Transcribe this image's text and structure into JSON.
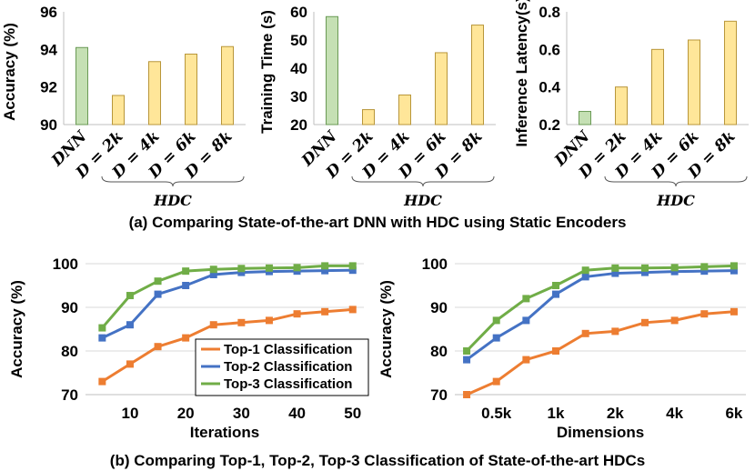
{
  "captions": {
    "a": "(a) Comparing State-of-the-art DNN with HDC using Static Encoders",
    "b": "(b) Comparing Top-1, Top-2, Top-3 Classification of State-of-the-art HDCs"
  },
  "colors": {
    "dnn_fill": "#c5e0b4",
    "dnn_stroke": "#6a9a55",
    "hdc_fill": "#ffe699",
    "hdc_stroke": "#b8963a",
    "top1": "#ed7d31",
    "top2": "#4472c4",
    "top3": "#70ad47",
    "grid": "#d9d9d9"
  },
  "chart_data": [
    {
      "id": "accuracy",
      "type": "bar",
      "categories": [
        "DNN",
        "D = 2k",
        "D = 4k",
        "D = 6k",
        "D = 8k"
      ],
      "values": [
        94.1,
        91.55,
        93.35,
        93.75,
        94.15
      ],
      "ylabel": "Accuracy (%)",
      "ylim": [
        90,
        96
      ],
      "yticks": [
        90,
        92,
        94,
        96
      ],
      "group_label": "HDC"
    },
    {
      "id": "training",
      "type": "bar",
      "categories": [
        "DNN",
        "D = 2k",
        "D = 4k",
        "D = 6k",
        "D = 8k"
      ],
      "values": [
        58.3,
        25.3,
        30.5,
        45.5,
        55.3
      ],
      "ylabel": "Training Time (s)",
      "ylim": [
        20,
        60
      ],
      "yticks": [
        20,
        30,
        40,
        50,
        60
      ],
      "group_label": "HDC"
    },
    {
      "id": "latency",
      "type": "bar",
      "categories": [
        "DNN",
        "D = 2k",
        "D = 4k",
        "D = 6k",
        "D = 8k"
      ],
      "values": [
        0.27,
        0.4,
        0.6,
        0.65,
        0.75
      ],
      "ylabel": "Inference Latency(s)",
      "ylim": [
        0.2,
        0.8
      ],
      "yticks": [
        "0.2",
        "0.4",
        "0.6",
        "0.8"
      ],
      "group_label": "HDC"
    },
    {
      "id": "iterations",
      "type": "line",
      "x": [
        5,
        10,
        15,
        20,
        25,
        30,
        35,
        40,
        45,
        50
      ],
      "xticks": [
        10,
        20,
        30,
        40,
        50
      ],
      "xlim": [
        2,
        52
      ],
      "xlabel": "Iterations",
      "ylabel": "Accuracy (%)",
      "ylim": [
        70,
        100
      ],
      "yticks": [
        70,
        80,
        90,
        100
      ],
      "series": [
        {
          "name": "Top-1 Classification",
          "values": [
            73,
            77,
            81,
            83,
            86,
            86.5,
            87,
            88.5,
            89,
            89.5
          ]
        },
        {
          "name": "Top-2 Classification",
          "values": [
            83,
            86,
            93,
            95,
            97.5,
            98,
            98.2,
            98.3,
            98.4,
            98.5
          ]
        },
        {
          "name": "Top-3 Classification",
          "values": [
            85.3,
            92.7,
            96,
            98.3,
            98.7,
            98.9,
            99,
            99.1,
            99.5,
            99.5
          ]
        }
      ],
      "legend": "bottom-right"
    },
    {
      "id": "dimensions",
      "type": "line",
      "x": [
        0,
        1,
        2,
        3,
        4,
        5,
        6,
        7,
        8,
        9
      ],
      "xticks": [
        {
          "pos": 1,
          "label": "0.5k"
        },
        {
          "pos": 3,
          "label": "1k"
        },
        {
          "pos": 5,
          "label": "2k"
        },
        {
          "pos": 7,
          "label": "4k"
        },
        {
          "pos": 9,
          "label": "6k"
        }
      ],
      "xlim": [
        -0.4,
        9.4
      ],
      "xlabel": "Dimensions",
      "ylabel": "Accuracy (%)",
      "ylim": [
        70,
        100
      ],
      "yticks": [
        70,
        80,
        90,
        100
      ],
      "series": [
        {
          "name": "Top-1 Classification",
          "values": [
            70,
            73,
            78,
            80,
            84,
            84.5,
            86.5,
            87,
            88.5,
            89
          ]
        },
        {
          "name": "Top-2 Classification",
          "values": [
            78,
            83,
            87,
            93,
            97,
            97.8,
            98,
            98.2,
            98.3,
            98.4
          ]
        },
        {
          "name": "Top-3 Classification",
          "values": [
            80,
            87,
            92,
            95,
            98.5,
            99,
            99,
            99.1,
            99.3,
            99.5
          ]
        }
      ]
    }
  ]
}
